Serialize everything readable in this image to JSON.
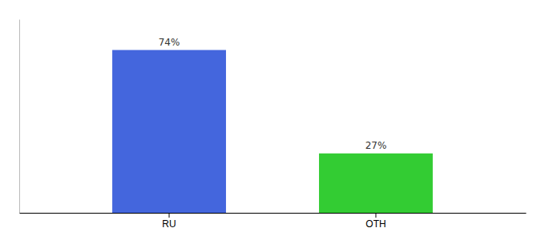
{
  "chart_data": {
    "type": "bar",
    "categories": [
      "RU",
      "OTH"
    ],
    "values": [
      74,
      27
    ],
    "value_labels": [
      "74%",
      "27%"
    ],
    "colors": [
      "#4466dd",
      "#33cc33"
    ],
    "ylim": [
      0,
      88
    ],
    "yticks": [],
    "grid": false,
    "data_labels": true,
    "tick_labels": "x"
  }
}
